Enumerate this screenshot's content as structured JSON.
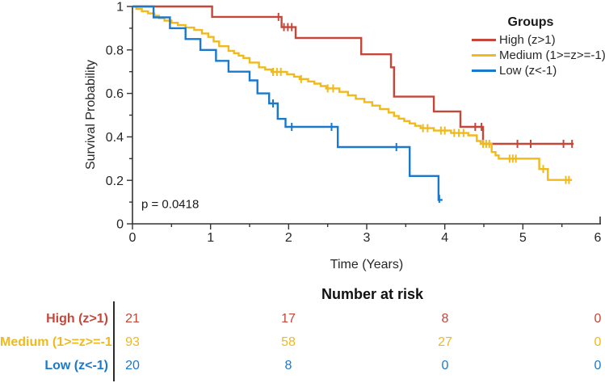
{
  "figure": {
    "p_value_text": "p = 0.0418",
    "xlabel": "Time (Years)",
    "ylabel": "Survival Probability"
  },
  "legend": {
    "title": "Groups",
    "items": [
      {
        "label": "High (z>1)"
      },
      {
        "label": "Medium (1>=z>=-1)"
      },
      {
        "label": "Low (z<-1)"
      }
    ]
  },
  "risk_table": {
    "title": "Number at risk",
    "time_points": [
      0,
      2,
      4,
      6
    ],
    "rows": [
      {
        "label": "High (z>1)",
        "values": [
          "21",
          "17",
          "8",
          "0"
        ]
      },
      {
        "label": "Medium (1>=z>=-1",
        "values": [
          "93",
          "58",
          "27",
          "0"
        ]
      },
      {
        "label": "Low (z<-1)",
        "values": [
          "20",
          "8",
          "0",
          "0"
        ]
      }
    ]
  },
  "chart_data": {
    "type": "line",
    "subtype": "kaplan-meier-step",
    "title": "",
    "xlabel": "Time (Years)",
    "ylabel": "Survival Probability",
    "xlim": [
      0,
      6
    ],
    "ylim": [
      0,
      1
    ],
    "grid": false,
    "legend_position": "top-right-inside",
    "annotations": [
      "p = 0.0418"
    ],
    "x_ticks": {
      "values": [
        0,
        1,
        2,
        3,
        4,
        5,
        6
      ],
      "labels": [
        "0",
        "1",
        "2",
        "3",
        "4",
        "5",
        "6"
      ],
      "minor": [
        0.5,
        1.5,
        2.5,
        3.5,
        4.5,
        5.5
      ]
    },
    "y_ticks": {
      "values": [
        0,
        0.2,
        0.4,
        0.6,
        0.8,
        1
      ],
      "labels": [
        "0",
        "0.2",
        "0.4",
        "0.6",
        "0.8",
        "1"
      ],
      "minor": [
        0.1,
        0.3,
        0.5,
        0.7,
        0.9
      ]
    },
    "axis_color": "#333333",
    "series": [
      {
        "name": "High (z>1)",
        "color": "#c4473a",
        "steps": [
          [
            0,
            1.0
          ],
          [
            1.02,
            0.952
          ],
          [
            1.91,
            0.905
          ],
          [
            2.09,
            0.855
          ],
          [
            2.93,
            0.78
          ],
          [
            3.31,
            0.72
          ],
          [
            3.35,
            0.585
          ],
          [
            3.86,
            0.517
          ],
          [
            4.2,
            0.446
          ],
          [
            4.49,
            0.368
          ]
        ],
        "end_time": 5.65,
        "censors": [
          [
            1.87,
            0.952
          ],
          [
            1.94,
            0.905
          ],
          [
            1.99,
            0.905
          ],
          [
            2.04,
            0.905
          ],
          [
            4.39,
            0.446
          ],
          [
            4.47,
            0.446
          ],
          [
            4.93,
            0.368
          ],
          [
            5.1,
            0.368
          ],
          [
            5.52,
            0.368
          ],
          [
            5.63,
            0.368
          ]
        ]
      },
      {
        "name": "Medium (1>=z>=-1)",
        "color": "#f0b91c",
        "steps": [
          [
            0,
            1.0
          ],
          [
            0.05,
            0.989
          ],
          [
            0.12,
            0.978
          ],
          [
            0.2,
            0.968
          ],
          [
            0.28,
            0.957
          ],
          [
            0.34,
            0.946
          ],
          [
            0.41,
            0.935
          ],
          [
            0.5,
            0.925
          ],
          [
            0.58,
            0.914
          ],
          [
            0.68,
            0.903
          ],
          [
            0.79,
            0.892
          ],
          [
            0.89,
            0.876
          ],
          [
            0.97,
            0.86
          ],
          [
            1.04,
            0.839
          ],
          [
            1.11,
            0.817
          ],
          [
            1.23,
            0.796
          ],
          [
            1.3,
            0.785
          ],
          [
            1.36,
            0.774
          ],
          [
            1.42,
            0.763
          ],
          [
            1.5,
            0.742
          ],
          [
            1.62,
            0.72
          ],
          [
            1.7,
            0.71
          ],
          [
            1.78,
            0.699
          ],
          [
            1.98,
            0.688
          ],
          [
            2.07,
            0.677
          ],
          [
            2.14,
            0.666
          ],
          [
            2.25,
            0.655
          ],
          [
            2.33,
            0.645
          ],
          [
            2.41,
            0.634
          ],
          [
            2.48,
            0.623
          ],
          [
            2.65,
            0.607
          ],
          [
            2.76,
            0.591
          ],
          [
            2.86,
            0.575
          ],
          [
            2.97,
            0.56
          ],
          [
            3.07,
            0.544
          ],
          [
            3.17,
            0.528
          ],
          [
            3.28,
            0.512
          ],
          [
            3.35,
            0.496
          ],
          [
            3.41,
            0.484
          ],
          [
            3.48,
            0.473
          ],
          [
            3.55,
            0.462
          ],
          [
            3.62,
            0.451
          ],
          [
            3.69,
            0.44
          ],
          [
            3.86,
            0.429
          ],
          [
            4.08,
            0.418
          ],
          [
            4.3,
            0.407
          ],
          [
            4.41,
            0.381
          ],
          [
            4.46,
            0.368
          ],
          [
            4.6,
            0.33
          ],
          [
            4.65,
            0.315
          ],
          [
            4.69,
            0.3
          ],
          [
            5.21,
            0.252
          ],
          [
            5.32,
            0.202
          ]
        ],
        "end_time": 5.63,
        "censors": [
          [
            1.8,
            0.699
          ],
          [
            1.85,
            0.699
          ],
          [
            1.9,
            0.699
          ],
          [
            2.16,
            0.666
          ],
          [
            2.5,
            0.623
          ],
          [
            2.57,
            0.623
          ],
          [
            3.72,
            0.44
          ],
          [
            3.78,
            0.44
          ],
          [
            3.95,
            0.429
          ],
          [
            4.0,
            0.429
          ],
          [
            4.12,
            0.418
          ],
          [
            4.18,
            0.418
          ],
          [
            4.24,
            0.418
          ],
          [
            4.49,
            0.368
          ],
          [
            4.53,
            0.368
          ],
          [
            4.57,
            0.368
          ],
          [
            4.83,
            0.3
          ],
          [
            4.87,
            0.3
          ],
          [
            4.91,
            0.3
          ],
          [
            5.26,
            0.252
          ],
          [
            5.55,
            0.202
          ],
          [
            5.59,
            0.202
          ]
        ]
      },
      {
        "name": "Low (z<-1)",
        "color": "#1b79cc",
        "steps": [
          [
            0,
            1.0
          ],
          [
            0.27,
            0.95
          ],
          [
            0.48,
            0.9
          ],
          [
            0.68,
            0.85
          ],
          [
            0.87,
            0.8
          ],
          [
            1.07,
            0.75
          ],
          [
            1.23,
            0.7
          ],
          [
            1.5,
            0.66
          ],
          [
            1.6,
            0.6
          ],
          [
            1.75,
            0.554
          ],
          [
            1.86,
            0.483
          ],
          [
            1.96,
            0.446
          ],
          [
            2.63,
            0.353
          ],
          [
            3.55,
            0.22
          ],
          [
            3.92,
            0.11
          ]
        ],
        "end_time": 3.97,
        "censors": [
          [
            1.8,
            0.554
          ],
          [
            2.04,
            0.446
          ],
          [
            2.55,
            0.446
          ],
          [
            3.38,
            0.353
          ],
          [
            3.93,
            0.115
          ]
        ]
      }
    ],
    "risk_table": {
      "title": "Number at risk",
      "time_points": [
        0,
        2,
        4,
        6
      ],
      "rows": [
        {
          "group": "High (z>1)",
          "counts": [
            21,
            17,
            8,
            0
          ]
        },
        {
          "group": "Medium (1>=z>=-1)",
          "counts": [
            93,
            58,
            27,
            0
          ]
        },
        {
          "group": "Low (z<-1)",
          "counts": [
            20,
            8,
            0,
            0
          ]
        }
      ]
    }
  }
}
